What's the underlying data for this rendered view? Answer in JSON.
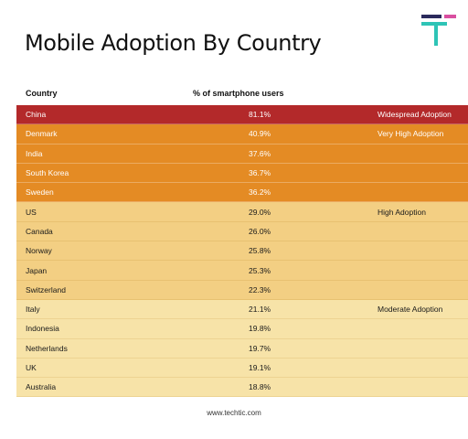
{
  "title": "Mobile Adoption By Country",
  "footer": "www.techtic.com",
  "logo": {
    "icon": "techtic-logo-icon",
    "colors": [
      "#2b2a5c",
      "#2ec4b6",
      "#d94fa0"
    ]
  },
  "tier_colors": [
    "#b3292a",
    "#e48b24",
    "#f3cf83",
    "#f7e3a8"
  ],
  "chart_data": {
    "type": "table",
    "columns": [
      "Country",
      "% of smartphone users",
      ""
    ],
    "rows": [
      {
        "country": "China",
        "pct": "81.1%",
        "value": 81.1,
        "tier": "Widespread Adoption",
        "tier_index": 0,
        "show_tier": true
      },
      {
        "country": "Denmark",
        "pct": "40.9%",
        "value": 40.9,
        "tier": "Very High Adoption",
        "tier_index": 1,
        "show_tier": true
      },
      {
        "country": "India",
        "pct": "37.6%",
        "value": 37.6,
        "tier": "Very High Adoption",
        "tier_index": 1,
        "show_tier": false
      },
      {
        "country": "South Korea",
        "pct": "36.7%",
        "value": 36.7,
        "tier": "Very High Adoption",
        "tier_index": 1,
        "show_tier": false
      },
      {
        "country": "Sweden",
        "pct": "36.2%",
        "value": 36.2,
        "tier": "Very High Adoption",
        "tier_index": 1,
        "show_tier": false
      },
      {
        "country": "US",
        "pct": "29.0%",
        "value": 29.0,
        "tier": "High Adoption",
        "tier_index": 2,
        "show_tier": true
      },
      {
        "country": "Canada",
        "pct": "26.0%",
        "value": 26.0,
        "tier": "High Adoption",
        "tier_index": 2,
        "show_tier": false
      },
      {
        "country": "Norway",
        "pct": "25.8%",
        "value": 25.8,
        "tier": "High Adoption",
        "tier_index": 2,
        "show_tier": false
      },
      {
        "country": "Japan",
        "pct": "25.3%",
        "value": 25.3,
        "tier": "High Adoption",
        "tier_index": 2,
        "show_tier": false
      },
      {
        "country": "Switzerland",
        "pct": "22.3%",
        "value": 22.3,
        "tier": "High Adoption",
        "tier_index": 2,
        "show_tier": false
      },
      {
        "country": "Italy",
        "pct": "21.1%",
        "value": 21.1,
        "tier": "Moderate Adoption",
        "tier_index": 3,
        "show_tier": true
      },
      {
        "country": "Indonesia",
        "pct": "19.8%",
        "value": 19.8,
        "tier": "Moderate Adoption",
        "tier_index": 3,
        "show_tier": false
      },
      {
        "country": "Netherlands",
        "pct": "19.7%",
        "value": 19.7,
        "tier": "Moderate Adoption",
        "tier_index": 3,
        "show_tier": false
      },
      {
        "country": "UK",
        "pct": "19.1%",
        "value": 19.1,
        "tier": "Moderate Adoption",
        "tier_index": 3,
        "show_tier": false
      },
      {
        "country": "Australia",
        "pct": "18.8%",
        "value": 18.8,
        "tier": "Moderate Adoption",
        "tier_index": 3,
        "show_tier": false
      }
    ]
  }
}
